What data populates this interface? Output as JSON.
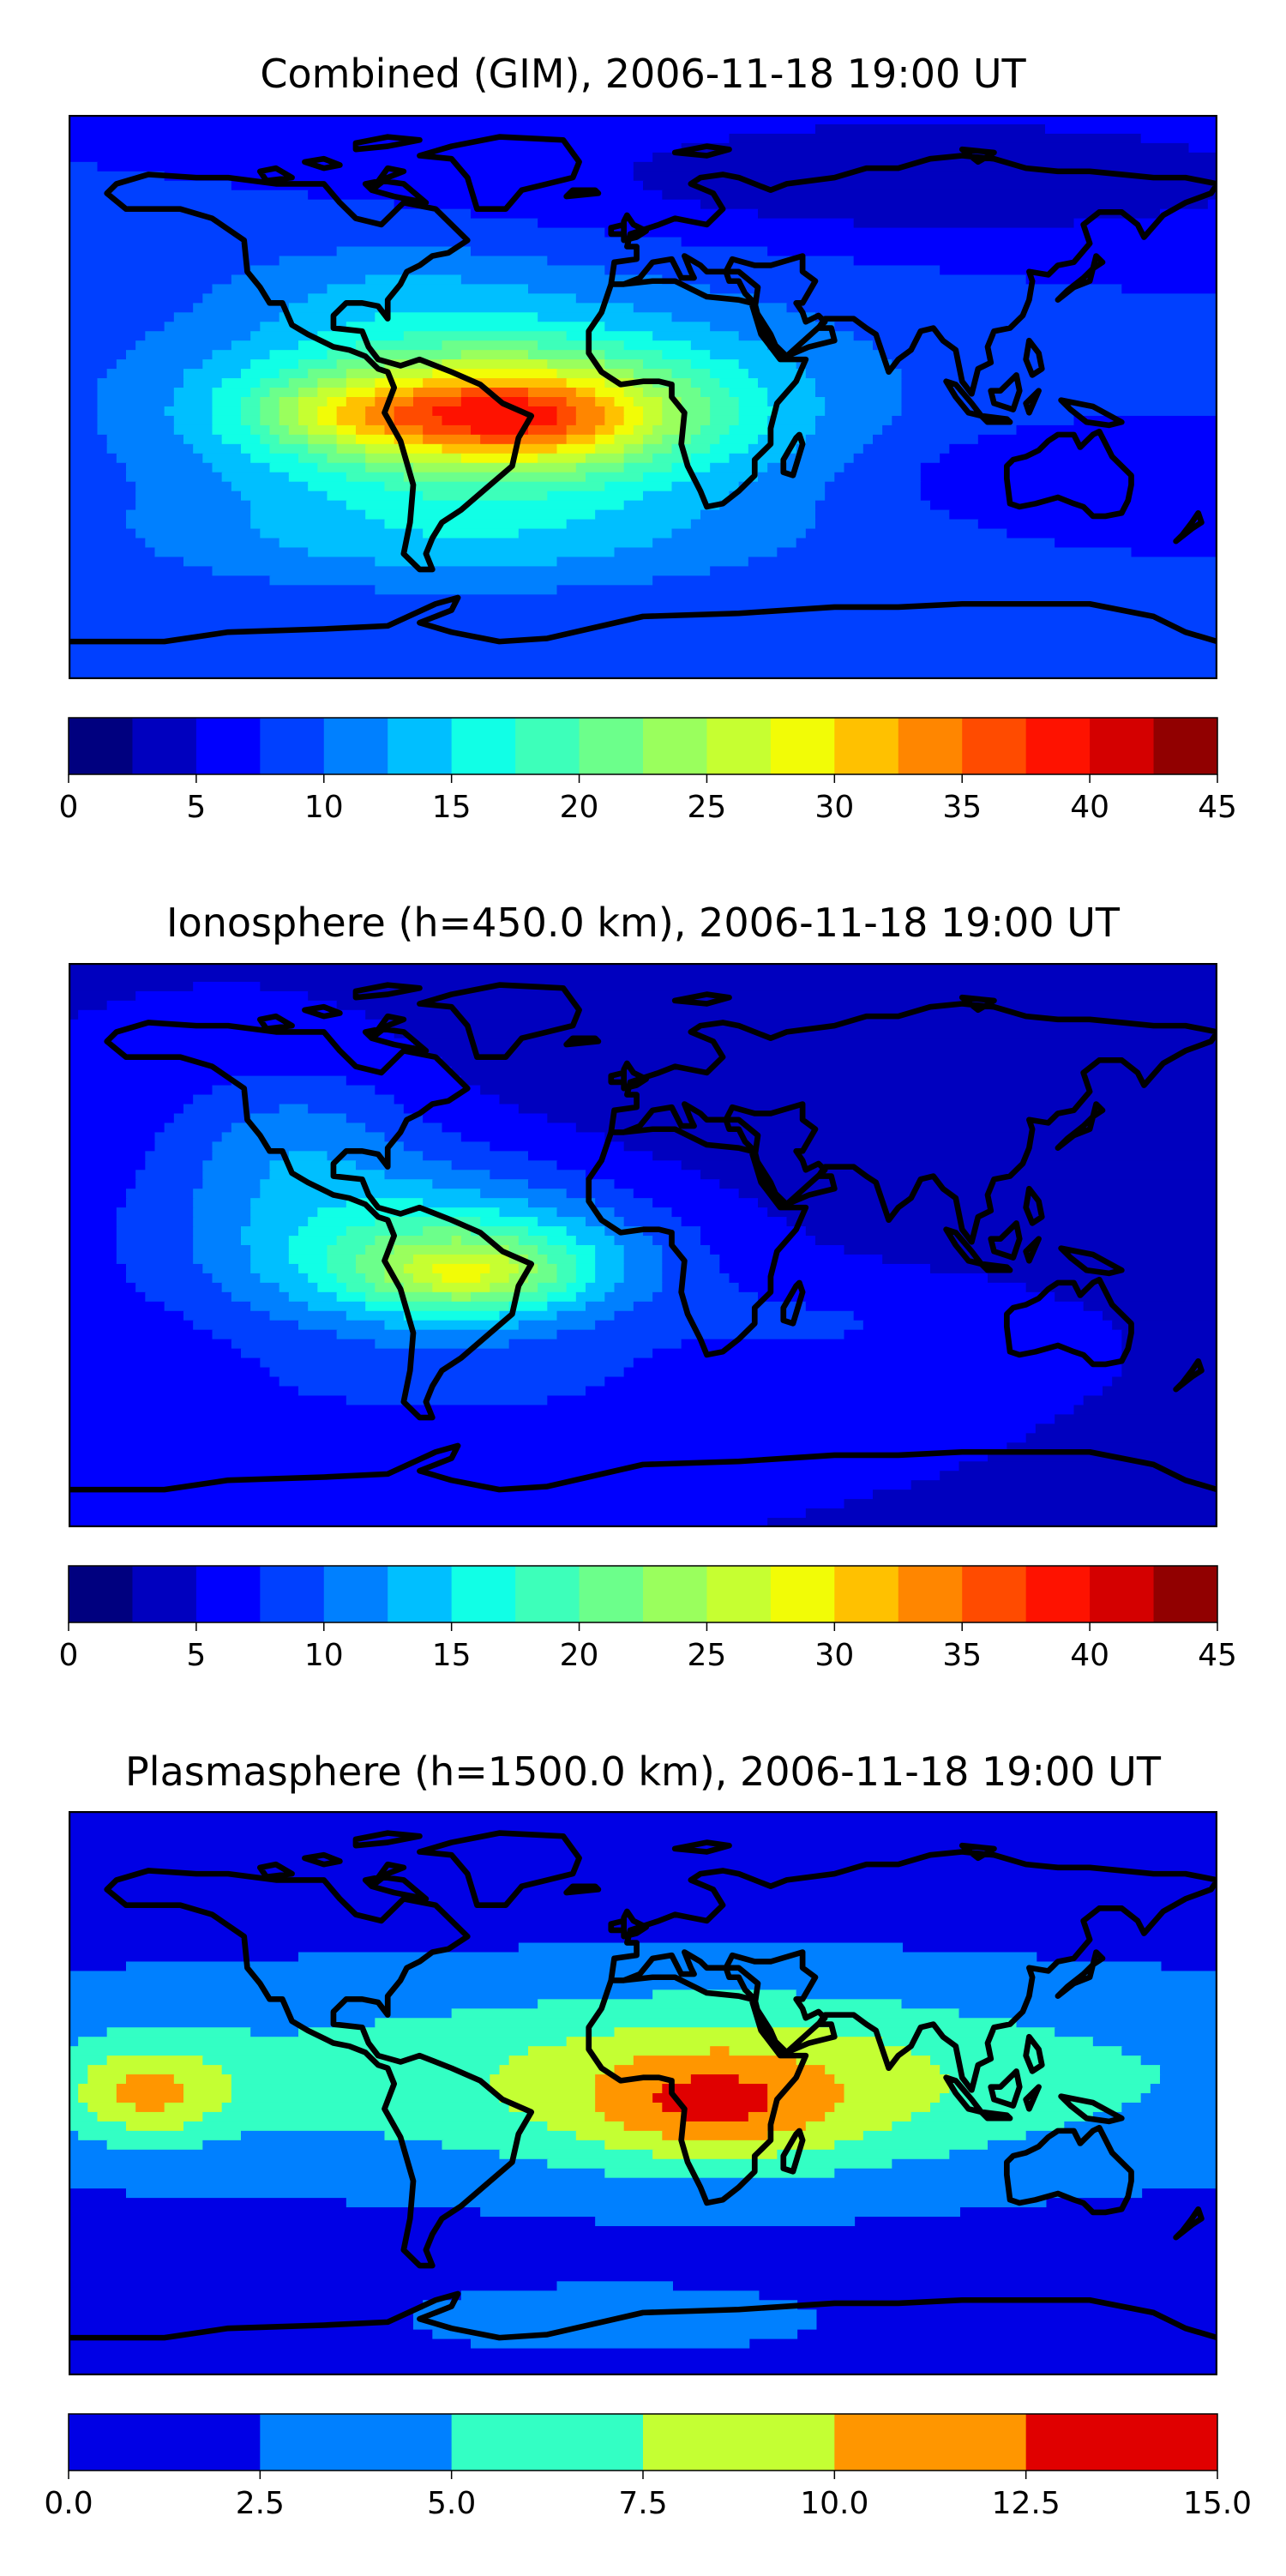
{
  "colors": {
    "jet18": [
      "#00007f",
      "#0000bf",
      "#0000fe",
      "#0040ff",
      "#0080ff",
      "#00bfff",
      "#11ffe6",
      "#3dffba",
      "#6cff8b",
      "#9aff5d",
      "#c6ff31",
      "#f2fc06",
      "#ffc100",
      "#ff8600",
      "#ff4b00",
      "#fe1200",
      "#d40000",
      "#910000"
    ],
    "jet6": [
      "#0000e5",
      "#0080ff",
      "#33ffc4",
      "#c4ff33",
      "#ff9600",
      "#e00000"
    ],
    "land_outline": "#000000"
  },
  "panels": [
    {
      "title": "Combined (GIM), 2006-11-18 19:00 UT",
      "colorbar": {
        "ticks": [
          "0",
          "5",
          "10",
          "15",
          "20",
          "25",
          "30",
          "35",
          "40",
          "45"
        ],
        "levels": [
          0,
          2.5,
          5,
          7.5,
          10,
          12.5,
          15,
          17.5,
          20,
          22.5,
          25,
          27.5,
          30,
          32.5,
          35,
          37.5,
          40,
          42.5,
          45
        ]
      },
      "field": {
        "background": 7.5,
        "features": [
          {
            "lon": -40,
            "lat": 0,
            "rx": 110,
            "ry": 38,
            "amp": 7.5
          },
          {
            "lon": -50,
            "lat": -5,
            "rx": 70,
            "ry": 22,
            "amp": 15
          },
          {
            "lon": -40,
            "lat": -7,
            "rx": 45,
            "ry": 14,
            "amp": 10
          },
          {
            "lon": -95,
            "lat": -5,
            "rx": 28,
            "ry": 10,
            "amp": 5
          },
          {
            "lon": -60,
            "lat": -45,
            "rx": 100,
            "ry": 18,
            "amp": 5
          },
          {
            "lon": -80,
            "lat": 35,
            "rx": 50,
            "ry": 15,
            "amp": 2.5
          },
          {
            "lon": 90,
            "lat": 70,
            "rx": 120,
            "ry": 20,
            "amp": -5
          },
          {
            "lon": 120,
            "lat": -25,
            "rx": 50,
            "ry": 15,
            "amp": -2.5
          }
        ]
      }
    },
    {
      "title": "Ionosphere  (h=450.0 km), 2006-11-18 19:00 UT",
      "colorbar": {
        "ticks": [
          "0",
          "5",
          "10",
          "15",
          "20",
          "25",
          "30",
          "35",
          "40",
          "45"
        ],
        "levels": [
          0,
          2.5,
          5,
          7.5,
          10,
          12.5,
          15,
          17.5,
          20,
          22.5,
          25,
          27.5,
          30,
          32.5,
          35,
          37.5,
          40,
          42.5,
          45
        ]
      },
      "field": {
        "background": 5,
        "features": [
          {
            "lon": -70,
            "lat": 0,
            "rx": 80,
            "ry": 30,
            "amp": 10
          },
          {
            "lon": -55,
            "lat": -8,
            "rx": 45,
            "ry": 16,
            "amp": 10
          },
          {
            "lon": -55,
            "lat": -10,
            "rx": 25,
            "ry": 9,
            "amp": 5
          },
          {
            "lon": -110,
            "lat": 35,
            "rx": 40,
            "ry": 25,
            "amp": 5
          },
          {
            "lon": -60,
            "lat": -45,
            "rx": 80,
            "ry": 15,
            "amp": 2.5
          },
          {
            "lon": 60,
            "lat": 45,
            "rx": 120,
            "ry": 45,
            "amp": -2.5
          },
          {
            "lon": 60,
            "lat": -25,
            "rx": 50,
            "ry": 15,
            "amp": 2.5
          }
        ]
      }
    },
    {
      "title": "Plasmasphere (h=1500.0 km), 2006-11-18 19:00 UT",
      "colorbar": {
        "ticks": [
          "0.0",
          "2.5",
          "5.0",
          "7.5",
          "10.0",
          "12.5",
          "15.0"
        ],
        "levels": [
          0,
          2.5,
          5,
          7.5,
          10,
          12.5,
          15
        ]
      },
      "field": {
        "background": 1.5,
        "features": [
          {
            "lon": 0,
            "lat": 5,
            "rx": 260,
            "ry": 32,
            "amp": 5
          },
          {
            "lon": 30,
            "lat": 0,
            "rx": 70,
            "ry": 28,
            "amp": 4
          },
          {
            "lon": 20,
            "lat": -5,
            "rx": 35,
            "ry": 15,
            "amp": 3.5
          },
          {
            "lon": -155,
            "lat": 0,
            "rx": 25,
            "ry": 15,
            "amp": 6
          },
          {
            "lon": -10,
            "lat": -72,
            "rx": 60,
            "ry": 10,
            "amp": 3
          }
        ]
      }
    }
  ]
}
